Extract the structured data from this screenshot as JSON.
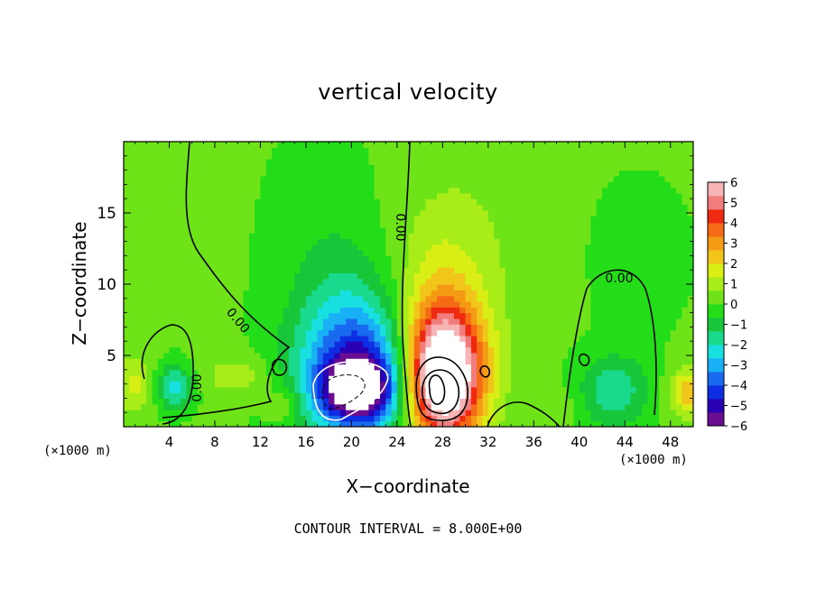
{
  "chart_data": {
    "type": "heatmap",
    "title": "vertical velocity",
    "xlabel": "X−coordinate",
    "ylabel": "Z−coordinate",
    "x_unit": "(×1000 m)",
    "xlim": [
      0,
      50
    ],
    "ylim": [
      0,
      20
    ],
    "x_ticks": [
      4,
      8,
      12,
      16,
      20,
      24,
      28,
      32,
      36,
      40,
      44,
      48
    ],
    "y_ticks": [
      5,
      10,
      15
    ],
    "colorbar": {
      "min": -6,
      "max": 6,
      "tick_labels": [
        "6",
        "5",
        "4",
        "3",
        "2",
        "1",
        "0",
        "−1",
        "−2",
        "−3",
        "−4",
        "−5",
        "−6"
      ],
      "colors": [
        "#6a0d91",
        "#2b00b5",
        "#0d2ee3",
        "#1a6af0",
        "#1ab0f5",
        "#19e0e0",
        "#19d98c",
        "#17c739",
        "#22dd18",
        "#6ee418",
        "#a8ec18",
        "#d9ee14",
        "#f2c51a",
        "#f59a14",
        "#f56a14",
        "#ee2a10",
        "#f07c7c",
        "#f6b4b4"
      ]
    },
    "contour_labels": [
      "0.00",
      "0.00",
      "0.00",
      "0.00"
    ],
    "contour_interval_text": "CONTOUR INTERVAL = 8.000E+00",
    "blobs": [
      {
        "x": 21,
        "z": 3.2,
        "sx": 5.5,
        "sz": 4.5,
        "a": -4.0
      },
      {
        "x": 20.5,
        "z": 2.6,
        "sx": 3.0,
        "sz": 2.0,
        "a": -4.0
      },
      {
        "x": 20,
        "z": 6.5,
        "sx": 4.5,
        "sz": 5.0,
        "a": -1.6
      },
      {
        "x": 18,
        "z": 12,
        "sx": 5.0,
        "sz": 8.0,
        "a": -0.6
      },
      {
        "x": 28,
        "z": 3.5,
        "sx": 3.4,
        "sz": 4.5,
        "a": 8.5
      },
      {
        "x": 28,
        "z": 8,
        "sx": 4.0,
        "sz": 6.0,
        "a": 1.5
      },
      {
        "x": 30,
        "z": 14,
        "sx": 7.0,
        "sz": 8.0,
        "a": 0.45
      },
      {
        "x": 43,
        "z": 2.5,
        "sx": 3.0,
        "sz": 2.5,
        "a": -2.0
      },
      {
        "x": 45,
        "z": 12,
        "sx": 5.0,
        "sz": 6.0,
        "a": -0.3
      },
      {
        "x": 4.5,
        "z": 2.8,
        "sx": 1.5,
        "sz": 1.5,
        "a": -2.5
      },
      {
        "x": 10,
        "z": 3.6,
        "sx": 3.0,
        "sz": 1.5,
        "a": 1.0
      },
      {
        "x": 1,
        "z": 3.0,
        "sx": 1.5,
        "sz": 2.0,
        "a": 1.4
      },
      {
        "x": 49.5,
        "z": 2.5,
        "sx": 1.5,
        "sz": 1.6,
        "a": 2.5
      },
      {
        "x": 14,
        "z": 1.5,
        "sx": 1.5,
        "sz": 1.2,
        "a": 1.2
      },
      {
        "x": 38,
        "z": 1.5,
        "sx": 2.0,
        "sz": 1.2,
        "a": 0.6
      }
    ]
  }
}
